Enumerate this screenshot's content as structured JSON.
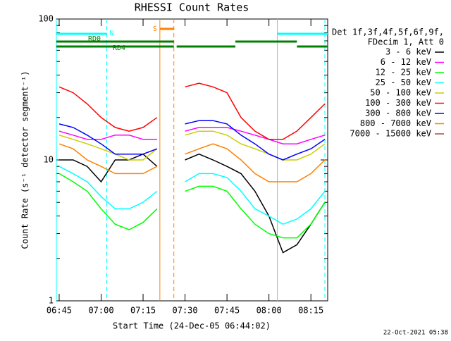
{
  "chart_data": {
    "type": "line",
    "title": "RHESSI Count Rates",
    "x_label": "Start Time (24-Dec-05 06:44:02)",
    "y_label": "Count Rate (s⁻¹ detector segment⁻¹)",
    "legend_header": [
      "Det 1f,3f,4f,5f,6f,9f,",
      "FDecim 1, Att 0"
    ],
    "footer": "22-Oct-2021 05:38",
    "log_y": true,
    "xlim": [
      "06:44",
      "08:21"
    ],
    "xticks": [
      "06:45",
      "07:00",
      "07:15",
      "07:30",
      "07:45",
      "08:00",
      "08:15"
    ],
    "ylim": [
      1,
      100
    ],
    "yticks": [
      1,
      10,
      100
    ],
    "yminorticks": [
      2,
      3,
      4,
      5,
      6,
      7,
      8,
      9,
      20,
      30,
      40,
      50,
      60,
      70,
      80,
      90
    ],
    "x": [
      "06:45",
      "06:50",
      "06:55",
      "07:00",
      "07:05",
      "07:10",
      "07:15",
      "07:20",
      "07:25",
      "07:30",
      "07:35",
      "07:40",
      "07:45",
      "07:50",
      "07:55",
      "08:00",
      "08:05",
      "08:10",
      "08:15",
      "08:20"
    ],
    "series": [
      {
        "name": "3 - 6 keV",
        "color": "#000000",
        "values": [
          10,
          10,
          9,
          7,
          10,
          10,
          11,
          9,
          null,
          10,
          11,
          10,
          9,
          8,
          6,
          4,
          2.2,
          2.5,
          3.5,
          5
        ]
      },
      {
        "name": "6 - 12 keV",
        "color": "#ff00ff",
        "values": [
          16,
          15,
          14,
          14,
          15,
          15,
          14,
          14,
          null,
          16,
          17,
          17,
          17,
          16,
          15,
          14,
          13,
          13,
          14,
          15
        ]
      },
      {
        "name": "12 - 25 keV",
        "color": "#00ff00",
        "values": [
          8,
          7,
          6,
          4.5,
          3.5,
          3.2,
          3.6,
          4.5,
          null,
          6,
          6.5,
          6.5,
          6,
          4.5,
          3.5,
          3,
          2.8,
          2.8,
          3.5,
          5
        ]
      },
      {
        "name": "25 - 50 keV",
        "color": "#00ffff",
        "values": [
          9,
          8,
          7,
          5.5,
          4.5,
          4.5,
          5,
          6,
          null,
          7,
          8,
          8,
          7.5,
          6,
          4.5,
          4,
          3.5,
          3.8,
          4.5,
          6
        ]
      },
      {
        "name": "50 - 100 keV",
        "color": "#cccc00",
        "values": [
          15,
          14,
          13,
          12,
          11,
          10,
          10,
          12,
          null,
          15,
          16,
          16,
          15,
          13,
          12,
          11,
          10,
          10,
          11,
          13
        ]
      },
      {
        "name": "100 - 300 keV",
        "color": "#ff0000",
        "values": [
          33,
          30,
          25,
          20,
          17,
          16,
          17,
          20,
          null,
          33,
          35,
          33,
          30,
          20,
          16,
          14,
          14,
          16,
          20,
          25
        ]
      },
      {
        "name": "300 - 800 keV",
        "color": "#0000ff",
        "values": [
          18,
          17,
          15,
          13,
          11,
          11,
          11,
          12,
          null,
          18,
          19,
          19,
          18,
          15,
          13,
          11,
          10,
          11,
          12,
          14
        ]
      },
      {
        "name": "800 - 7000 keV",
        "color": "#ff8000",
        "values": [
          13,
          12,
          10,
          9,
          8,
          8,
          8,
          9,
          null,
          11,
          12,
          13,
          12,
          10,
          8,
          7,
          7,
          7,
          8,
          10
        ]
      },
      {
        "name": "7000 - 15000 keV",
        "color": "#a0522d",
        "values": [
          null,
          null,
          null,
          null,
          null,
          null,
          null,
          null,
          null,
          null,
          null,
          null,
          null,
          null,
          null,
          null,
          null,
          null,
          null,
          null
        ]
      }
    ],
    "markers": [
      {
        "time": "06:44",
        "color": "#00ffff",
        "dashed": false
      },
      {
        "time": "07:02",
        "color": "#00ffff",
        "dashed": true
      },
      {
        "time": "08:03",
        "color": "#00ffff",
        "dashed": false
      },
      {
        "time": "08:20",
        "color": "#00ffff",
        "dashed": true
      },
      {
        "time": "07:21",
        "color": "#ff8000",
        "dashed": false
      },
      {
        "time": "07:26",
        "color": "#ff8000",
        "dashed": true
      }
    ],
    "flags": [
      {
        "label": "S",
        "color": "#ff8000",
        "segments": [
          [
            "07:21",
            "07:26"
          ]
        ]
      },
      {
        "label": "N",
        "color": "#00ffff",
        "segments": [
          [
            "06:44",
            "07:02"
          ],
          [
            "08:03",
            "08:21"
          ]
        ]
      },
      {
        "label": "RD0",
        "color": "#008000",
        "segments": [
          [
            "06:44",
            "07:26"
          ],
          [
            "07:48",
            "08:10"
          ]
        ]
      },
      {
        "label": "RD4",
        "color": "#008000",
        "segments": [
          [
            "06:44",
            "07:26"
          ],
          [
            "07:27",
            "07:48"
          ],
          [
            "08:10",
            "08:21"
          ]
        ]
      }
    ]
  }
}
